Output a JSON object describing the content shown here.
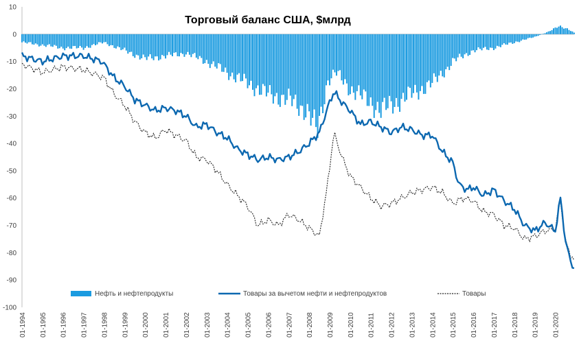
{
  "chart_data": {
    "type": "bar",
    "title": "Торговый баланс США, $млрд",
    "xlabel": "",
    "ylabel": "",
    "ylim": [
      -100,
      10
    ],
    "yticks": [
      10,
      0,
      -10,
      -20,
      -30,
      -40,
      -50,
      -60,
      -70,
      -80,
      -90,
      -100
    ],
    "grid": false,
    "legend_position": "bottom",
    "x_tick_labels": [
      "01-1994",
      "01-1995",
      "01-1996",
      "01-1997",
      "01-1998",
      "01-1999",
      "01-2000",
      "01-2001",
      "01-2002",
      "01-2003",
      "01-2004",
      "01-2005",
      "01-2006",
      "01-2007",
      "01-2008",
      "01-2009",
      "01-2010",
      "01-2011",
      "01-2012",
      "01-2013",
      "01-2014",
      "01-2015",
      "01-2016",
      "01-2017",
      "01-2018",
      "01-2019",
      "01-2020"
    ],
    "x_start_year": 1994,
    "x_end_year": 2020.92,
    "series": [
      {
        "name": "Нефть и нефтепродукты",
        "type": "bar",
        "color": "#1b9be0",
        "points": [
          [
            1994,
            -3
          ],
          [
            1995,
            -4
          ],
          [
            1996,
            -5
          ],
          [
            1997,
            -5
          ],
          [
            1998,
            -3
          ],
          [
            1999,
            -6
          ],
          [
            2000,
            -9
          ],
          [
            2001,
            -8
          ],
          [
            2002,
            -7
          ],
          [
            2003,
            -10
          ],
          [
            2004,
            -14
          ],
          [
            2005,
            -18
          ],
          [
            2006,
            -22
          ],
          [
            2007,
            -24
          ],
          [
            2007.9,
            -28
          ],
          [
            2008.4,
            -36
          ],
          [
            2008.9,
            -17
          ],
          [
            2009.3,
            -14
          ],
          [
            2010,
            -20
          ],
          [
            2011,
            -25
          ],
          [
            2011.5,
            -28
          ],
          [
            2012,
            -26
          ],
          [
            2013,
            -22
          ],
          [
            2014,
            -18
          ],
          [
            2014.8,
            -12
          ],
          [
            2015,
            -10
          ],
          [
            2016,
            -6
          ],
          [
            2017,
            -5
          ],
          [
            2018,
            -3
          ],
          [
            2019,
            -1
          ],
          [
            2019.7,
            1
          ],
          [
            2020.2,
            3
          ],
          [
            2020.6,
            2
          ],
          [
            2020.92,
            0.5
          ]
        ]
      },
      {
        "name": "Товары за вычетом нефти и нефтепродуктов",
        "type": "line",
        "color": "#0c68b0",
        "points": [
          [
            1994,
            -8
          ],
          [
            1995,
            -10
          ],
          [
            1996,
            -8
          ],
          [
            1997,
            -8
          ],
          [
            1997.9,
            -10
          ],
          [
            1998.5,
            -16
          ],
          [
            1999,
            -19
          ],
          [
            1999.5,
            -24
          ],
          [
            2000,
            -26
          ],
          [
            2000.5,
            -28
          ],
          [
            2001,
            -27
          ],
          [
            2001.5,
            -28
          ],
          [
            2002,
            -30
          ],
          [
            2002.5,
            -34
          ],
          [
            2003,
            -33
          ],
          [
            2003.5,
            -36
          ],
          [
            2004,
            -38
          ],
          [
            2004.5,
            -42
          ],
          [
            2005,
            -44
          ],
          [
            2005.5,
            -46
          ],
          [
            2006,
            -45
          ],
          [
            2006.5,
            -46
          ],
          [
            2007,
            -45
          ],
          [
            2007.5,
            -43
          ],
          [
            2008,
            -40
          ],
          [
            2008.5,
            -36
          ],
          [
            2008.9,
            -27
          ],
          [
            2009.2,
            -21
          ],
          [
            2009.6,
            -25
          ],
          [
            2010,
            -28
          ],
          [
            2010.5,
            -33
          ],
          [
            2011,
            -32
          ],
          [
            2011.5,
            -34
          ],
          [
            2012,
            -36
          ],
          [
            2012.5,
            -34
          ],
          [
            2013,
            -35
          ],
          [
            2013.5,
            -37
          ],
          [
            2014,
            -37
          ],
          [
            2014.5,
            -43
          ],
          [
            2015,
            -47
          ],
          [
            2015.3,
            -55
          ],
          [
            2015.7,
            -57
          ],
          [
            2016,
            -56
          ],
          [
            2016.5,
            -59
          ],
          [
            2017,
            -57
          ],
          [
            2017.5,
            -61
          ],
          [
            2018,
            -64
          ],
          [
            2018.5,
            -70
          ],
          [
            2019,
            -72
          ],
          [
            2019.5,
            -69
          ],
          [
            2020,
            -72
          ],
          [
            2020.25,
            -60
          ],
          [
            2020.5,
            -76
          ],
          [
            2020.7,
            -82
          ],
          [
            2020.92,
            -86
          ]
        ]
      },
      {
        "name": "Товары",
        "type": "line",
        "dashed": true,
        "color": "#222222",
        "points": [
          [
            1994,
            -11
          ],
          [
            1995,
            -14
          ],
          [
            1996,
            -12
          ],
          [
            1997,
            -13
          ],
          [
            1998,
            -16
          ],
          [
            1998.5,
            -22
          ],
          [
            1999,
            -26
          ],
          [
            1999.5,
            -32
          ],
          [
            2000,
            -36
          ],
          [
            2000.5,
            -38
          ],
          [
            2001,
            -35
          ],
          [
            2001.5,
            -37
          ],
          [
            2002,
            -39
          ],
          [
            2002.5,
            -45
          ],
          [
            2003,
            -46
          ],
          [
            2003.5,
            -50
          ],
          [
            2004,
            -55
          ],
          [
            2004.5,
            -59
          ],
          [
            2005,
            -63
          ],
          [
            2005.5,
            -70
          ],
          [
            2006,
            -68
          ],
          [
            2006.5,
            -70
          ],
          [
            2007,
            -66
          ],
          [
            2007.5,
            -68
          ],
          [
            2008,
            -71
          ],
          [
            2008.5,
            -74
          ],
          [
            2008.9,
            -55
          ],
          [
            2009.2,
            -36
          ],
          [
            2009.6,
            -45
          ],
          [
            2010,
            -52
          ],
          [
            2010.5,
            -56
          ],
          [
            2011,
            -60
          ],
          [
            2011.5,
            -63
          ],
          [
            2012,
            -62
          ],
          [
            2012.5,
            -60
          ],
          [
            2013,
            -58
          ],
          [
            2013.5,
            -57
          ],
          [
            2014,
            -56
          ],
          [
            2014.5,
            -58
          ],
          [
            2015,
            -62
          ],
          [
            2015.5,
            -60
          ],
          [
            2016,
            -61
          ],
          [
            2016.5,
            -65
          ],
          [
            2017,
            -66
          ],
          [
            2017.5,
            -70
          ],
          [
            2018,
            -71
          ],
          [
            2018.5,
            -75
          ],
          [
            2019,
            -74
          ],
          [
            2019.5,
            -72
          ],
          [
            2020,
            -71
          ],
          [
            2020.25,
            -61
          ],
          [
            2020.5,
            -76
          ],
          [
            2020.7,
            -80
          ],
          [
            2020.92,
            -83
          ]
        ]
      }
    ]
  }
}
